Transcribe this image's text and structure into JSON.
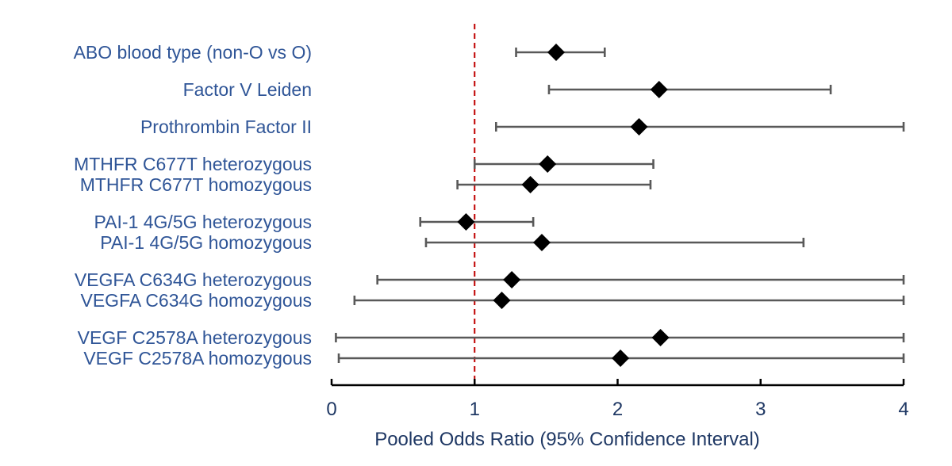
{
  "chart_data": {
    "type": "forest",
    "xlabel": "Pooled Odds Ratio (95% Confidence Interval)",
    "xlim": [
      0,
      4
    ],
    "x_ticks": [
      "0",
      "1",
      "2",
      "3",
      "4"
    ],
    "reference_line": {
      "value": 1,
      "color": "#c00000",
      "style": "dashed"
    },
    "marker": "diamond",
    "marker_color": "#000000",
    "ci_color": "#595959",
    "label_color": "#2f5597",
    "axis_text_color": "#1f3864",
    "rows": [
      {
        "label": "ABO blood type (non-O vs O)",
        "group": 0,
        "or": 1.57,
        "lower": 1.29,
        "upper": 1.91
      },
      {
        "label": "Factor V Leiden",
        "group": 1,
        "or": 2.29,
        "lower": 1.52,
        "upper": 3.49
      },
      {
        "label": "Prothrombin Factor II",
        "group": 2,
        "or": 2.15,
        "lower": 1.15,
        "upper": 4.0
      },
      {
        "label": "MTHFR C677T heterozygous",
        "group": 3,
        "or": 1.51,
        "lower": 1.0,
        "upper": 2.25
      },
      {
        "label": "MTHFR C677T homozygous",
        "group": 3,
        "or": 1.39,
        "lower": 0.88,
        "upper": 2.23
      },
      {
        "label": "PAI-1 4G/5G heterozygous",
        "group": 4,
        "or": 0.94,
        "lower": 0.62,
        "upper": 1.41
      },
      {
        "label": "PAI-1 4G/5G homozygous",
        "group": 4,
        "or": 1.47,
        "lower": 0.66,
        "upper": 3.3
      },
      {
        "label": "VEGFA C634G heterozygous",
        "group": 5,
        "or": 1.26,
        "lower": 0.32,
        "upper": 4.0
      },
      {
        "label": "VEGFA C634G homozygous",
        "group": 5,
        "or": 1.19,
        "lower": 0.16,
        "upper": 4.0
      },
      {
        "label": "VEGF C2578A heterozygous",
        "group": 6,
        "or": 2.3,
        "lower": 0.03,
        "upper": 4.0
      },
      {
        "label": "VEGF C2578A homozygous",
        "group": 6,
        "or": 2.02,
        "lower": 0.05,
        "upper": 4.0
      }
    ]
  }
}
